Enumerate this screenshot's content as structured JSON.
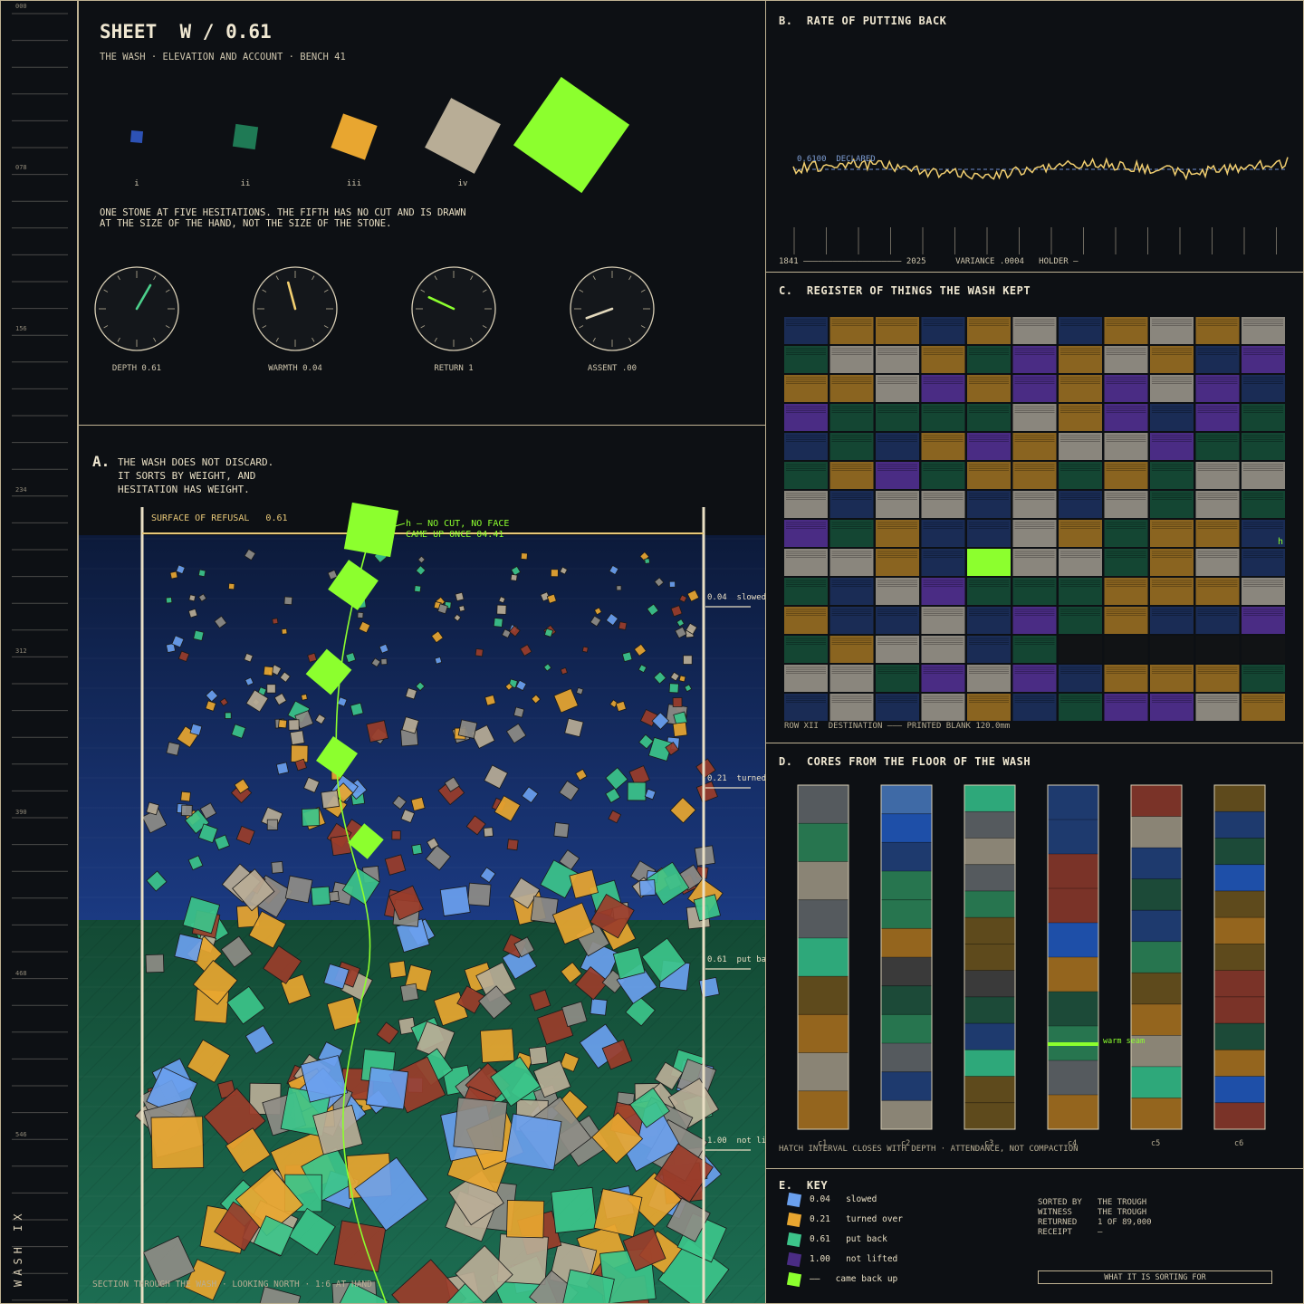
{
  "ruler": {
    "ticks": [
      "000",
      "078",
      "156",
      "234",
      "312",
      "390",
      "468",
      "546"
    ],
    "vertical_title": "WASH IX"
  },
  "sheet": {
    "title": "SHEET  W / 0.61",
    "subtitle": "THE WASH · ELEVATION AND ACCOUNT · BENCH 41",
    "stones": [
      {
        "label": "i",
        "color": "#2d52b5"
      },
      {
        "label": "ii",
        "color": "#1f7a55"
      },
      {
        "label": "iii",
        "color": "#e8a630"
      },
      {
        "label": "iv",
        "color": "#b8ad96"
      },
      {
        "label": "",
        "color": "#8cff2e"
      }
    ],
    "caption_line1": "ONE STONE AT FIVE HESITATIONS. THE FIFTH HAS NO CUT AND IS DRAWN",
    "caption_line2": "AT THE SIZE OF THE HAND, NOT THE SIZE OF THE STONE.",
    "dials": [
      {
        "label": "DEPTH 0.61",
        "color": "#4cd08c",
        "angle": 30
      },
      {
        "label": "WARMTH 0.04",
        "color": "#f2cf70",
        "angle": -15
      },
      {
        "label": "RETURN 1",
        "color": "#8cff2e",
        "angle": -65
      },
      {
        "label": "ASSENT .00",
        "color": "#e2d8bc",
        "angle": -110
      }
    ]
  },
  "section_a": {
    "letter": "A.",
    "text_lines": [
      "THE WASH DOES NOT DISCARD.",
      "IT SORTS BY WEIGHT, AND",
      "HESITATION HAS WEIGHT."
    ],
    "surface_label": "SURFACE OF REFUSAL   0.61",
    "callout_line1": "h — NO CUT, NO FACE",
    "callout_line2": "CAME UP  ONCE  04.41",
    "depth_marks": [
      {
        "value": "0.04",
        "label": "slowed"
      },
      {
        "value": "0.21",
        "label": "turned over"
      },
      {
        "value": "0.61",
        "label": "put back"
      },
      {
        "value": "1.00",
        "label": "not lifted"
      }
    ],
    "footer": "SECTION THROUGH THE WASH · LOOKING NORTH · 1:6 AT HAND"
  },
  "section_b": {
    "title": "B.  RATE OF PUTTING BACK",
    "baseline_label": "0.6100  DECLARED",
    "footer": "1841 ———————————————————— 2025      VARIANCE .0004   HOLDER —",
    "chart_data": {
      "type": "line",
      "x_range": [
        1841,
        2025
      ],
      "reference_value": 0.61,
      "reference_label": "0.6100  DECLARED",
      "variance": 0.0004
    }
  },
  "section_c": {
    "title": "C.  REGISTER OF THINGS THE WASH KEPT",
    "row_marker": "h",
    "footer": "ROW XII  DESTINATION ——— PRINTED BLANK 120.0mm"
  },
  "section_d": {
    "title": "D.  CORES FROM THE FLOOR OF THE WASH",
    "cores": [
      "c1",
      "c2",
      "c3",
      "c4",
      "c5",
      "c6"
    ],
    "seam_label": "warm seam",
    "footer": "HATCH INTERVAL CLOSES WITH DEPTH · ATTENDANCE, NOT COMPACTION"
  },
  "section_e": {
    "title": "E.  KEY",
    "items": [
      {
        "value": "0.04",
        "label": "slowed",
        "color": "#6aa0ee"
      },
      {
        "value": "0.21",
        "label": "turned over",
        "color": "#e8a630"
      },
      {
        "value": "0.61",
        "label": "put back",
        "color": "#3cc48a"
      },
      {
        "value": "1.00",
        "label": "not lifted",
        "color": "#4a2c84"
      },
      {
        "value": "——",
        "label": "came back up",
        "color": "#8cff2e"
      }
    ],
    "meta": [
      {
        "key": "SORTED BY",
        "value": "THE TROUGH"
      },
      {
        "key": "WITNESS",
        "value": "THE TROUGH"
      },
      {
        "key": "RETURNED",
        "value": "1 OF 89,000"
      },
      {
        "key": "RECEIPT",
        "value": "—"
      }
    ],
    "button_label": "WHAT IT IS SORTING FOR"
  }
}
